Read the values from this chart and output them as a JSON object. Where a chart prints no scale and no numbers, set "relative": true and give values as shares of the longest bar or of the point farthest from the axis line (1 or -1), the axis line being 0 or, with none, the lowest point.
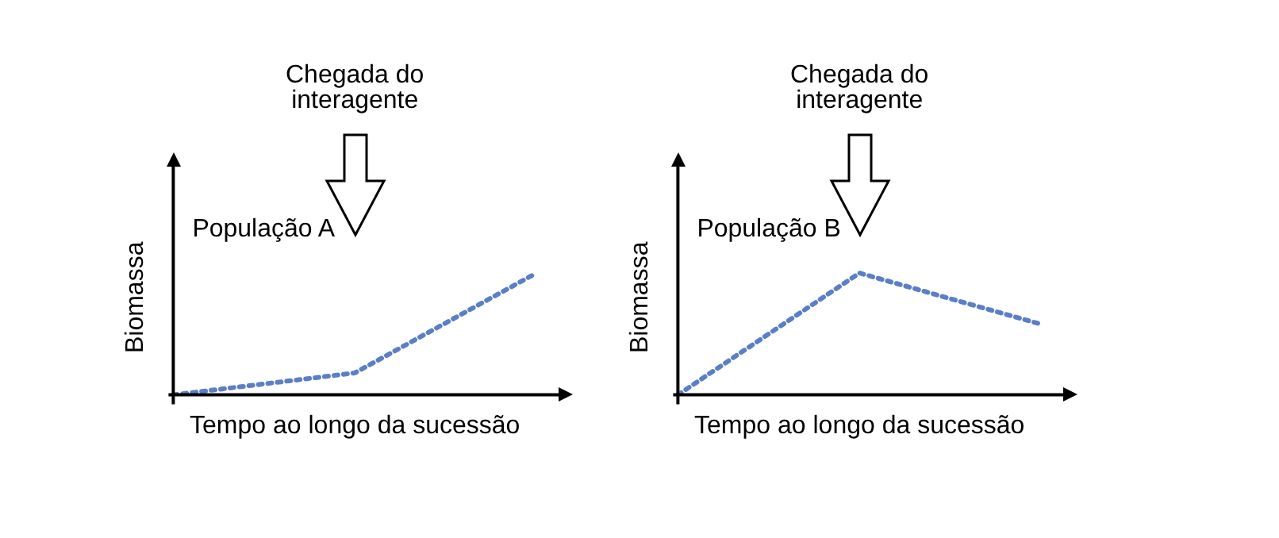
{
  "chart_data": [
    {
      "type": "line",
      "relative": true,
      "xlabel": "Tempo ao longo da sucessão",
      "ylabel": "Biomassa",
      "categories": [
        null,
        null,
        null
      ],
      "marker": "none",
      "line_style": "dotted",
      "annotations": [
        "Chegada do interagente"
      ],
      "series": [
        {
          "name": "População A",
          "color": "#5b7fc7",
          "values": [
            0,
            0.18,
            1
          ]
        }
      ]
    },
    {
      "type": "line",
      "relative": true,
      "xlabel": "Tempo ao longo da sucessão",
      "ylabel": "Biomassa",
      "categories": [
        null,
        null,
        null
      ],
      "marker": "none",
      "line_style": "dotted",
      "annotations": [
        "Chegada do interagente"
      ],
      "series": [
        {
          "name": "População B",
          "color": "#5b7fc7",
          "values": [
            0,
            1,
            0.58
          ]
        }
      ]
    }
  ]
}
